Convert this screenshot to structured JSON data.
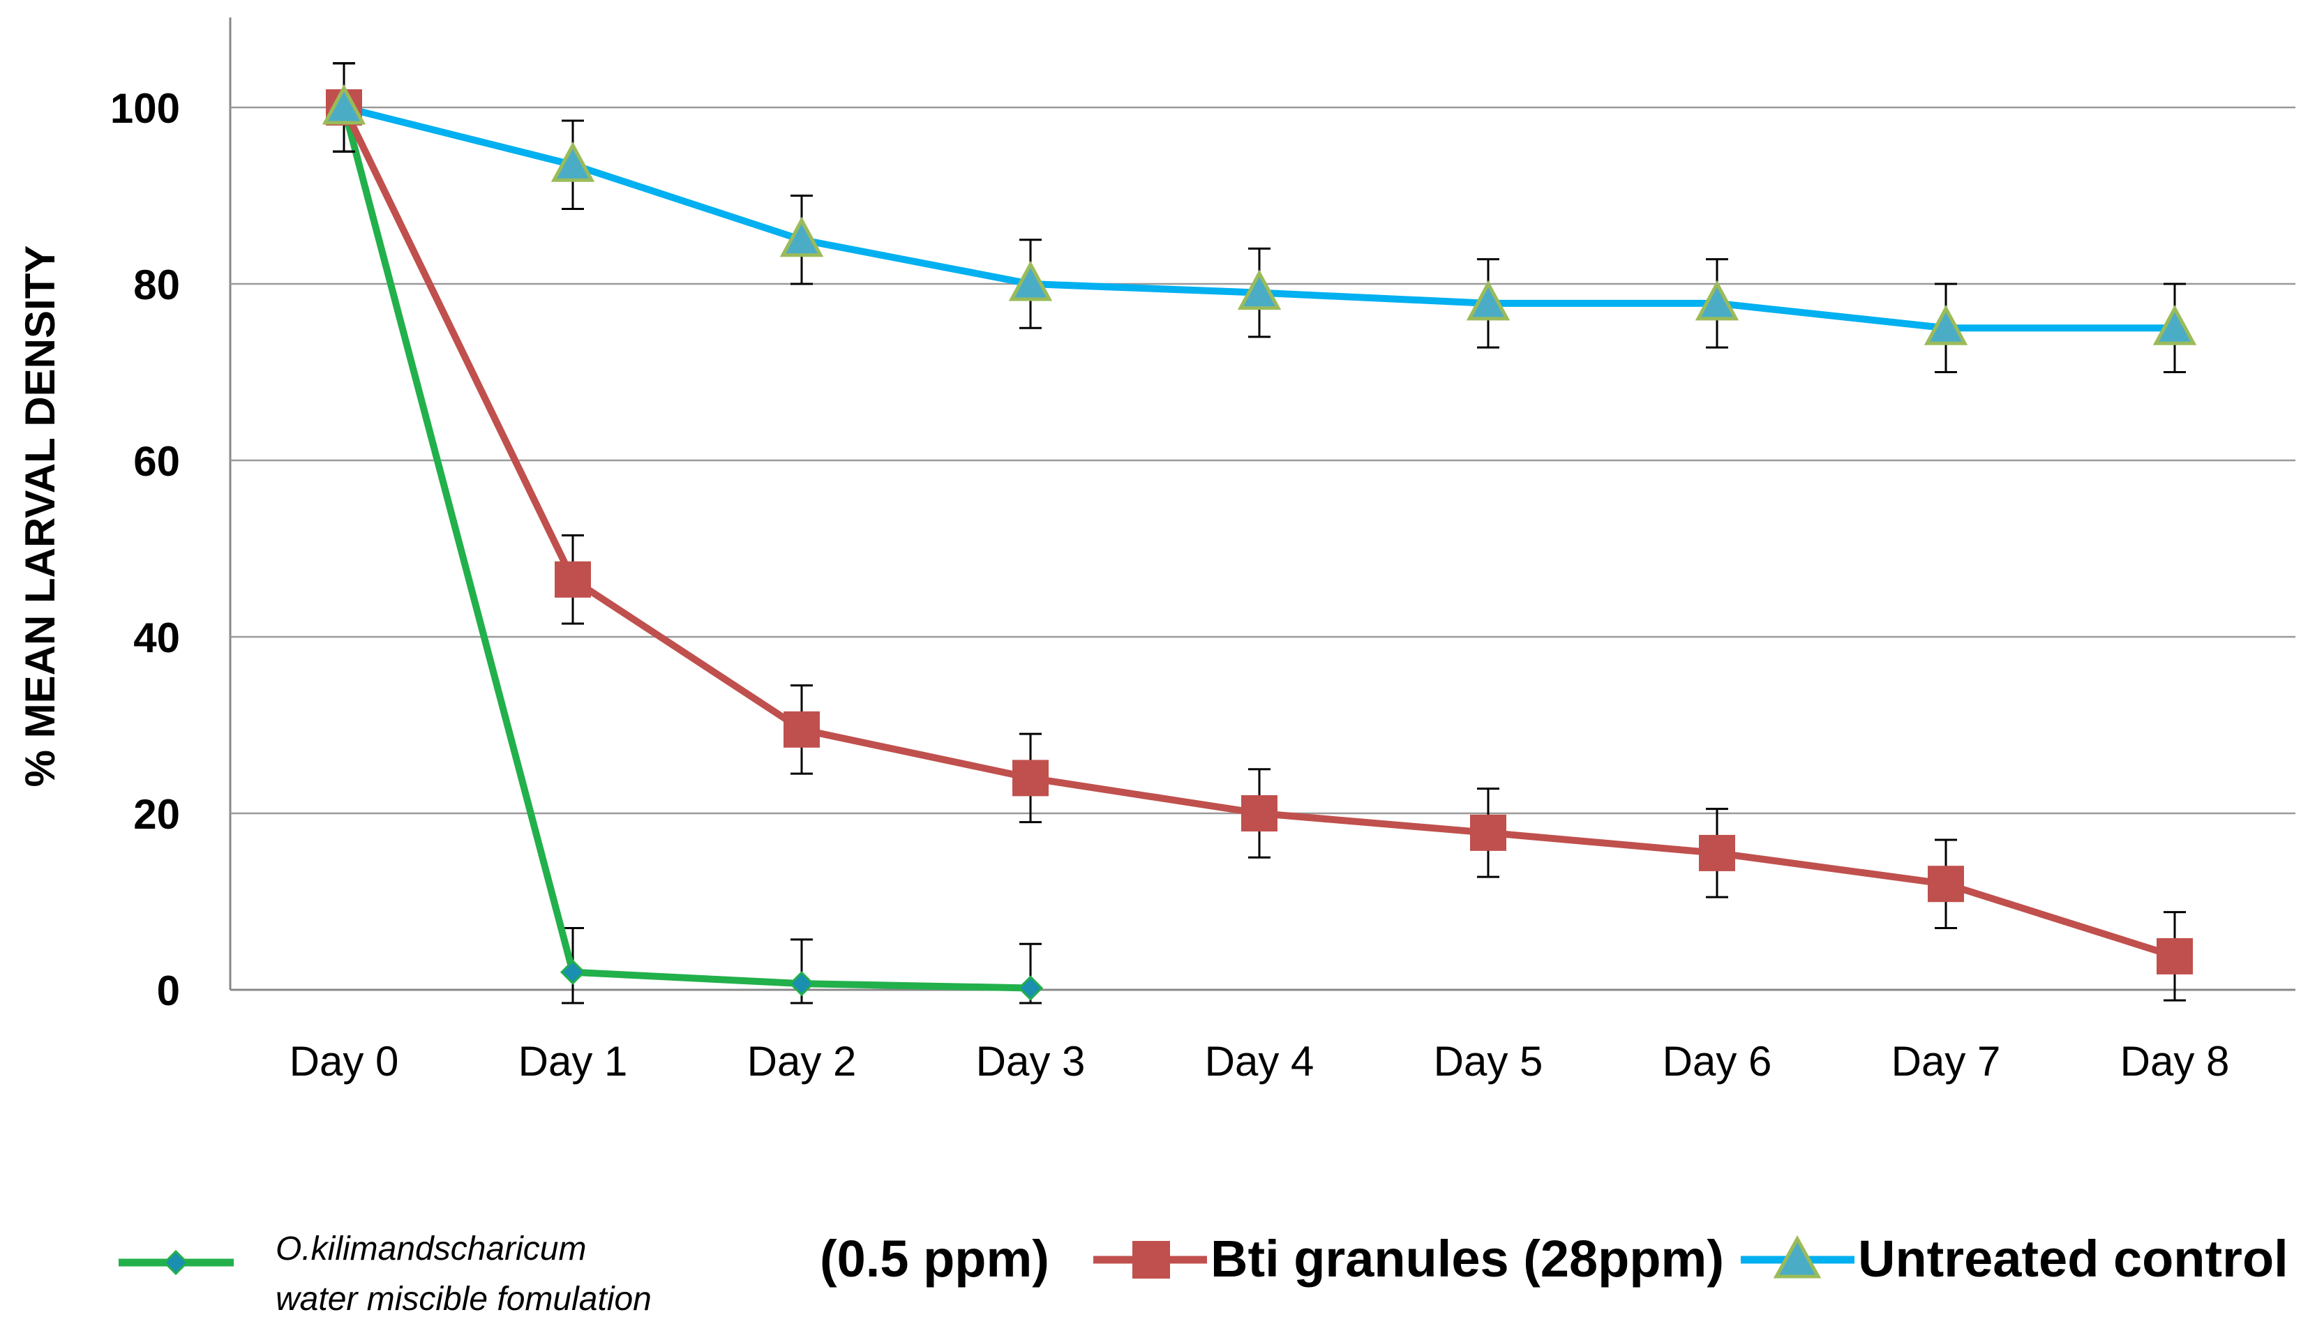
{
  "chart_data": {
    "type": "line",
    "title": "",
    "xlabel": "",
    "ylabel": "% MEAN LARVAL DENSITY",
    "categories": [
      "Day 0",
      "Day 1",
      "Day 2",
      "Day 3",
      "Day 4",
      "Day 5",
      "Day 6",
      "Day 7",
      "Day 8"
    ],
    "yticks": [
      "0",
      "20",
      "40",
      "60",
      "80",
      "100"
    ],
    "ylim": [
      0,
      110
    ],
    "grid": true,
    "legend_position": "bottom",
    "series": [
      {
        "name": "O.kilimandscharicum water miscible fomulation (0.5 ppm)",
        "legend_line1": "O.kilimandscharicum",
        "legend_line2": "water miscible fomulation",
        "legend_suffix": "(0.5 ppm)",
        "color": "#22b04b",
        "marker": "diamond",
        "values": [
          100,
          2,
          0.7,
          0.2,
          null,
          null,
          null,
          null,
          null
        ],
        "errors": [
          5,
          5,
          5,
          5,
          null,
          null,
          null,
          null,
          null
        ]
      },
      {
        "name": "Bti granules (28ppm)",
        "color": "#c0504d",
        "marker": "square",
        "values": [
          100,
          46.5,
          29.5,
          24,
          20,
          17.8,
          15.5,
          12,
          3.8
        ],
        "errors": [
          5,
          5,
          5,
          5,
          5,
          5,
          5,
          5,
          5
        ]
      },
      {
        "name": "Untreated control",
        "color": "#00b0f0",
        "marker": "triangle",
        "marker_fill": "#4bacc6",
        "marker_stroke": "#9bbb59",
        "values": [
          100,
          93.5,
          85,
          80,
          79,
          77.8,
          77.8,
          75,
          75
        ],
        "errors": [
          5,
          5,
          5,
          5,
          5,
          5,
          5,
          5,
          5
        ]
      }
    ]
  }
}
